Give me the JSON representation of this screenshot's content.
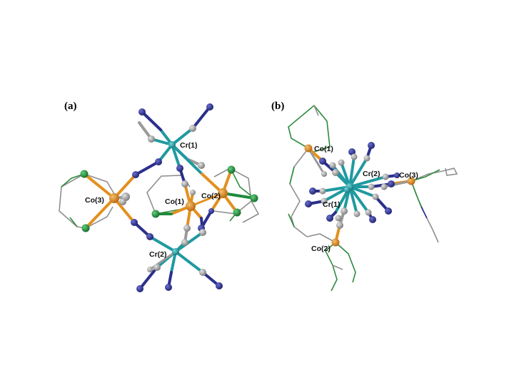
{
  "panels": [
    {
      "id": "a",
      "label": "(a)",
      "atom_labels": {
        "cr1": "Cr(1)",
        "cr2": "Cr(2)",
        "co1": "Co(1)",
        "co2": "Co(2)",
        "co3": "Co(3)"
      }
    },
    {
      "id": "b",
      "label": "(b)",
      "atom_labels": {
        "co1": "Co(1)",
        "co2": "Co(2)",
        "co3": "Co(3)",
        "cr1": "Cr(1)",
        "cr2": "Cr(2)"
      }
    }
  ],
  "colors": {
    "chromium": "#1f9aa0",
    "cobalt": "#e3901f",
    "nitrogen": "#2b2f8c",
    "carbon": "#9a9a9a",
    "chloride": "#1f8a3c",
    "ligand_chain": "#8f8f8f",
    "ligand_green": "#2e8b3e"
  }
}
